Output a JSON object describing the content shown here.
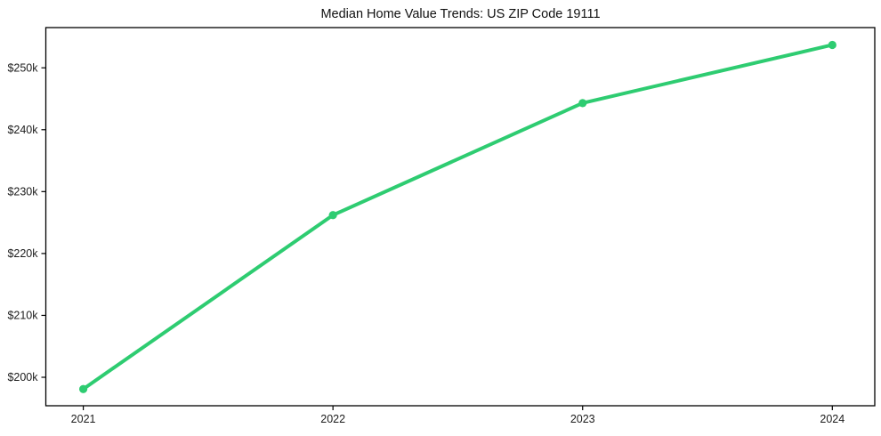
{
  "chart_data": {
    "type": "line",
    "title": "Median Home Value Trends: US ZIP Code 19111",
    "x": [
      2021,
      2022,
      2023,
      2024
    ],
    "x_tick_labels": [
      "2021",
      "2022",
      "2023",
      "2024"
    ],
    "series": [
      {
        "values": [
          198100,
          226200,
          244300,
          253700
        ]
      }
    ],
    "y_ticks": [
      200000,
      210000,
      220000,
      230000,
      240000,
      250000
    ],
    "y_tick_labels": [
      "$200k",
      "$210k",
      "$220k",
      "$230k",
      "$240k",
      "$250k"
    ],
    "xlim": [
      2020.85,
      2024.17
    ],
    "ylim": [
      195400,
      256500
    ],
    "xlabel": "",
    "ylabel": "",
    "grid": false,
    "legend": "none",
    "line_color": "#2ecc71",
    "line_width": 4,
    "marker_radius": 4.6,
    "axis_color": "#000000",
    "tick_label_color": "#1c1c1c",
    "background_color": "#ffffff"
  }
}
